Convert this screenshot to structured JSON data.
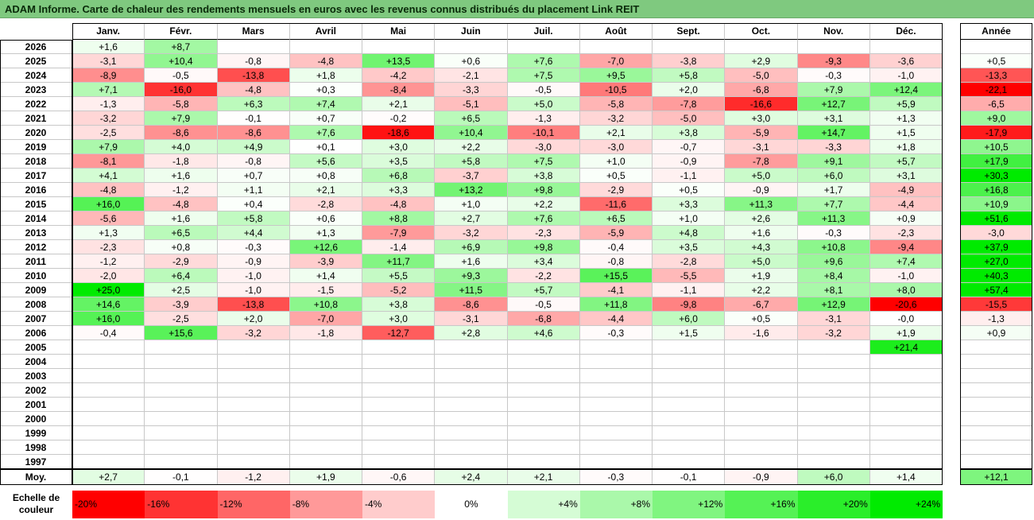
{
  "title": "ADAM Informe. Carte de chaleur des rendements mensuels en euros avec les revenus connus distribués du placement Link REIT",
  "chart_data": {
    "type": "heatmap",
    "columns": [
      "Janv.",
      "Févr.",
      "Mars",
      "Avril",
      "Mai",
      "Juin",
      "Juil.",
      "Août",
      "Sept.",
      "Oct.",
      "Nov.",
      "Déc."
    ],
    "year_column_label": "Année",
    "rows": [
      {
        "year": "2026",
        "values": [
          "+1,6",
          "+8,7",
          null,
          null,
          null,
          null,
          null,
          null,
          null,
          null,
          null,
          null
        ],
        "annual": null
      },
      {
        "year": "2025",
        "values": [
          "-3,1",
          "+10,4",
          "-0,8",
          "-4,8",
          "+13,5",
          "+0,6",
          "+7,6",
          "-7,0",
          "-3,8",
          "+2,9",
          "-9,3",
          "-3,6"
        ],
        "annual": "+0,5"
      },
      {
        "year": "2024",
        "values": [
          "-8,9",
          "-0,5",
          "-13,8",
          "+1,8",
          "-4,2",
          "-2,1",
          "+7,5",
          "+9,5",
          "+5,8",
          "-5,0",
          "-0,3",
          "-1,0"
        ],
        "annual": "-13,3"
      },
      {
        "year": "2023",
        "values": [
          "+7,1",
          "-16,0",
          "-4,8",
          "+0,3",
          "-8,4",
          "-3,3",
          "-0,5",
          "-10,5",
          "+2,0",
          "-6,8",
          "+7,9",
          "+12,4"
        ],
        "annual": "-22,1"
      },
      {
        "year": "2022",
        "values": [
          "-1,3",
          "-5,8",
          "+6,3",
          "+7,4",
          "+2,1",
          "-5,1",
          "+5,0",
          "-5,8",
          "-7,8",
          "-16,6",
          "+12,7",
          "+5,9"
        ],
        "annual": "-6,5"
      },
      {
        "year": "2021",
        "values": [
          "-3,2",
          "+7,9",
          "-0,1",
          "+0,7",
          "-0,2",
          "+6,5",
          "-1,3",
          "-3,2",
          "-5,0",
          "+3,0",
          "+3,1",
          "+1,3"
        ],
        "annual": "+9,0"
      },
      {
        "year": "2020",
        "values": [
          "-2,5",
          "-8,6",
          "-8,6",
          "+7,6",
          "-18,6",
          "+10,4",
          "-10,1",
          "+2,1",
          "+3,8",
          "-5,9",
          "+14,7",
          "+1,5"
        ],
        "annual": "-17,9"
      },
      {
        "year": "2019",
        "values": [
          "+7,9",
          "+4,0",
          "+4,9",
          "+0,1",
          "+3,0",
          "+2,2",
          "-3,0",
          "-3,0",
          "-0,7",
          "-3,1",
          "-3,3",
          "+1,8"
        ],
        "annual": "+10,5"
      },
      {
        "year": "2018",
        "values": [
          "-8,1",
          "-1,8",
          "-0,8",
          "+5,6",
          "+3,5",
          "+5,8",
          "+7,5",
          "+1,0",
          "-0,9",
          "-7,8",
          "+9,1",
          "+5,7"
        ],
        "annual": "+17,9"
      },
      {
        "year": "2017",
        "values": [
          "+4,1",
          "+1,6",
          "+0,7",
          "+0,8",
          "+6,8",
          "-3,7",
          "+3,8",
          "+0,5",
          "-1,1",
          "+5,0",
          "+6,0",
          "+3,1"
        ],
        "annual": "+30,3"
      },
      {
        "year": "2016",
        "values": [
          "-4,8",
          "-1,2",
          "+1,1",
          "+2,1",
          "+3,3",
          "+13,2",
          "+9,8",
          "-2,9",
          "+0,5",
          "-0,9",
          "+1,7",
          "-4,9"
        ],
        "annual": "+16,8"
      },
      {
        "year": "2015",
        "values": [
          "+16,0",
          "-4,8",
          "+0,4",
          "-2,8",
          "-4,8",
          "+1,0",
          "+2,2",
          "-11,6",
          "+3,3",
          "+11,3",
          "+7,7",
          "-4,4"
        ],
        "annual": "+10,9"
      },
      {
        "year": "2014",
        "values": [
          "-5,6",
          "+1,6",
          "+5,8",
          "+0,6",
          "+8,8",
          "+2,7",
          "+7,6",
          "+6,5",
          "+1,0",
          "+2,6",
          "+11,3",
          "+0,9"
        ],
        "annual": "+51,6"
      },
      {
        "year": "2013",
        "values": [
          "+1,3",
          "+6,5",
          "+4,4",
          "+1,3",
          "-7,9",
          "-3,2",
          "-2,3",
          "-5,9",
          "+4,8",
          "+1,6",
          "-0,3",
          "-2,3"
        ],
        "annual": "-3,0"
      },
      {
        "year": "2012",
        "values": [
          "-2,3",
          "+0,8",
          "-0,3",
          "+12,6",
          "-1,4",
          "+6,9",
          "+9,8",
          "-0,4",
          "+3,5",
          "+4,3",
          "+10,8",
          "-9,4"
        ],
        "annual": "+37,9"
      },
      {
        "year": "2011",
        "values": [
          "-1,2",
          "-2,9",
          "-0,9",
          "-3,9",
          "+11,7",
          "+1,6",
          "+3,4",
          "-0,8",
          "-2,8",
          "+5,0",
          "+9,6",
          "+7,4"
        ],
        "annual": "+27,0"
      },
      {
        "year": "2010",
        "values": [
          "-2,0",
          "+6,4",
          "-1,0",
          "+1,4",
          "+5,5",
          "+9,3",
          "-2,2",
          "+15,5",
          "-5,5",
          "+1,9",
          "+8,4",
          "-1,0"
        ],
        "annual": "+40,3"
      },
      {
        "year": "2009",
        "values": [
          "+25,0",
          "+2,5",
          "-1,0",
          "-1,5",
          "-5,2",
          "+11,5",
          "+5,7",
          "-4,1",
          "-1,1",
          "+2,2",
          "+8,1",
          "+8,0"
        ],
        "annual": "+57,4"
      },
      {
        "year": "2008",
        "values": [
          "+14,6",
          "-3,9",
          "-13,8",
          "+10,8",
          "+3,8",
          "-8,6",
          "-0,5",
          "+11,8",
          "-9,8",
          "-6,7",
          "+12,9",
          "-20,6"
        ],
        "annual": "-15,5"
      },
      {
        "year": "2007",
        "values": [
          "+16,0",
          "-2,5",
          "+2,0",
          "-7,0",
          "+3,0",
          "-3,1",
          "-6,8",
          "-4,4",
          "+6,0",
          "+0,5",
          "-3,1",
          "-0,0"
        ],
        "annual": "-1,3"
      },
      {
        "year": "2006",
        "values": [
          "-0,4",
          "+15,6",
          "-3,2",
          "-1,8",
          "-12,7",
          "+2,8",
          "+4,6",
          "-0,3",
          "+1,5",
          "-1,6",
          "-3,2",
          "+1,9"
        ],
        "annual": "+0,9"
      },
      {
        "year": "2005",
        "values": [
          null,
          null,
          null,
          null,
          null,
          null,
          null,
          null,
          null,
          null,
          null,
          "+21,4"
        ],
        "annual": null
      },
      {
        "year": "2004",
        "values": [
          null,
          null,
          null,
          null,
          null,
          null,
          null,
          null,
          null,
          null,
          null,
          null
        ],
        "annual": null
      },
      {
        "year": "2003",
        "values": [
          null,
          null,
          null,
          null,
          null,
          null,
          null,
          null,
          null,
          null,
          null,
          null
        ],
        "annual": null
      },
      {
        "year": "2002",
        "values": [
          null,
          null,
          null,
          null,
          null,
          null,
          null,
          null,
          null,
          null,
          null,
          null
        ],
        "annual": null
      },
      {
        "year": "2001",
        "values": [
          null,
          null,
          null,
          null,
          null,
          null,
          null,
          null,
          null,
          null,
          null,
          null
        ],
        "annual": null
      },
      {
        "year": "2000",
        "values": [
          null,
          null,
          null,
          null,
          null,
          null,
          null,
          null,
          null,
          null,
          null,
          null
        ],
        "annual": null
      },
      {
        "year": "1999",
        "values": [
          null,
          null,
          null,
          null,
          null,
          null,
          null,
          null,
          null,
          null,
          null,
          null
        ],
        "annual": null
      },
      {
        "year": "1998",
        "values": [
          null,
          null,
          null,
          null,
          null,
          null,
          null,
          null,
          null,
          null,
          null,
          null
        ],
        "annual": null
      },
      {
        "year": "1997",
        "values": [
          null,
          null,
          null,
          null,
          null,
          null,
          null,
          null,
          null,
          null,
          null,
          null
        ],
        "annual": null
      }
    ],
    "average": {
      "label": "Moy.",
      "values": [
        "+2,7",
        "-0,1",
        "-1,2",
        "+1,9",
        "-0,6",
        "+2,4",
        "+2,1",
        "-0,3",
        "-0,1",
        "-0,9",
        "+6,0",
        "+1,4"
      ],
      "annual": "+12,1"
    },
    "legend": {
      "label_line1": "Echelle de",
      "label_line2": "couleur",
      "stops": [
        "-20%",
        "-16%",
        "-12%",
        "-8%",
        "-4%",
        "0%",
        "+4%",
        "+8%",
        "+12%",
        "+16%",
        "+20%",
        "+24%"
      ],
      "stop_values": [
        -20,
        -16,
        -12,
        -8,
        -4,
        0,
        4,
        8,
        12,
        16,
        20,
        24
      ]
    },
    "colors": {
      "negative_max": "#ff0000",
      "neutral": "#ffffff",
      "positive_max": "#00ee00",
      "title_background": "#7fc97f"
    }
  }
}
